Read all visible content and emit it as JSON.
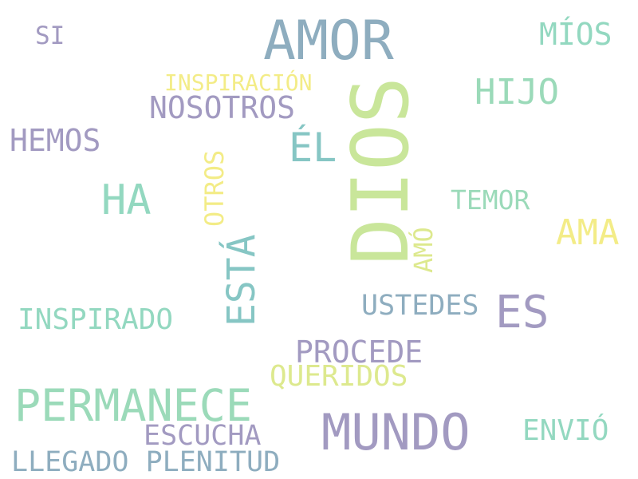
{
  "colors": {
    "background": "#ffffff",
    "slate_blue": "#8eadbf",
    "lavender": "#a29ac1",
    "mint": "#9bdab9",
    "yellow": "#f3ec87",
    "lime": "#c9e69a",
    "teal": "#86c6c4",
    "sea_green": "#93d8c0",
    "pale_yellow": "#dde98e"
  },
  "words": {
    "amor": "AMOR",
    "dios": "DIOS",
    "si": "SI",
    "mios": "MÍOS",
    "inspiracion": "INSPIRACIÓN",
    "hijo": "HIJO",
    "nosotros": "NOSOTROS",
    "el": "ÉL",
    "hemos": "HEMOS",
    "otros": "OTROS",
    "ha": "HA",
    "temor": "TEMOR",
    "ama": "AMA",
    "amo": "AMÓ",
    "esta": "ESTÁ",
    "inspirado": "INSPIRADO",
    "ustedes": "USTEDES",
    "es": "ES",
    "procede": "PROCEDE",
    "queridos": "QUERIDOS",
    "permanece": "PERMANECE",
    "mundo": "MUNDO",
    "envio": "ENVIÓ",
    "escucha": "ESCUCHA",
    "llegado_plenitud": "LLEGADO PLENITUD"
  }
}
